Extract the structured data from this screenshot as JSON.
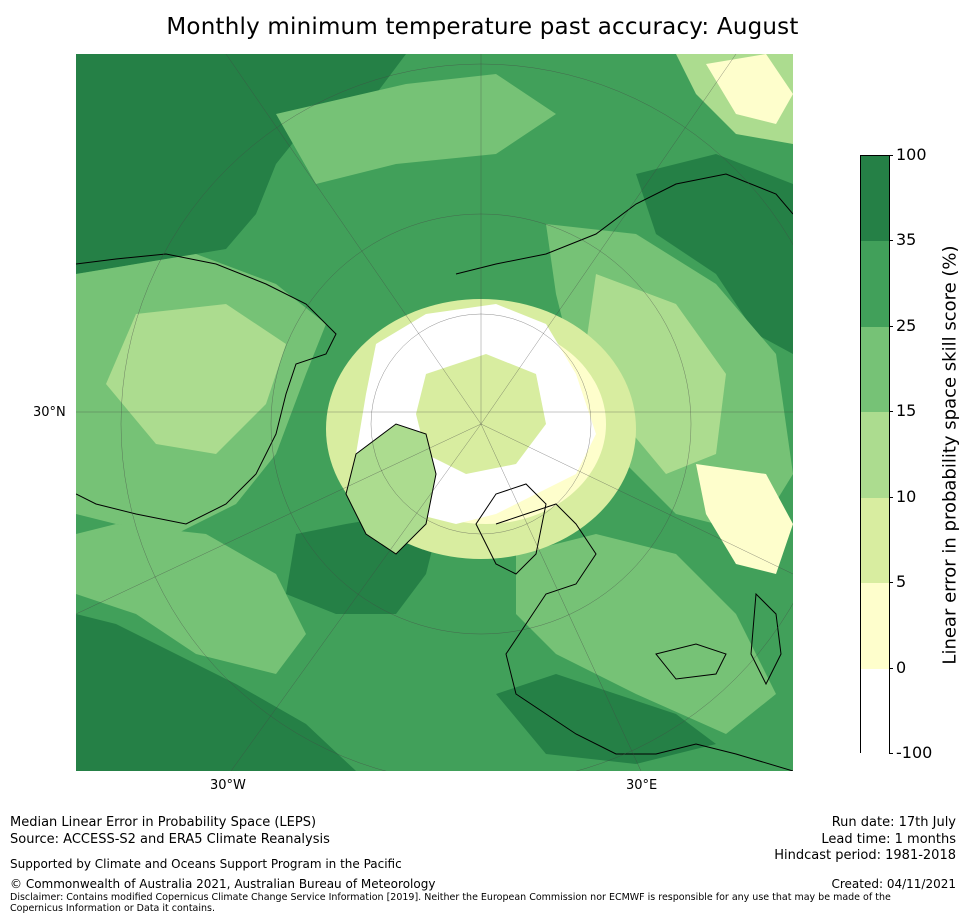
{
  "title": "Monthly minimum temperature past accuracy: August",
  "map": {
    "projection": "north-polar-stereographic",
    "lat_labels": [
      "30°N"
    ],
    "lon_labels": [
      "30°W",
      "30°E"
    ],
    "colors": {
      "very_dark_green": "#258046",
      "dark_green": "#41a05a",
      "mid_green": "#76c276",
      "light_green": "#acdc8f",
      "pale_green": "#d8eda0",
      "cream": "#fefecc",
      "white": "#ffffff",
      "coast": "#000000"
    }
  },
  "colorbar": {
    "label": "Linear error in probability space skill score (%)",
    "ticks": [
      "100",
      "35",
      "25",
      "15",
      "10",
      "5",
      "0",
      "-100"
    ],
    "bins": [
      {
        "from": "35",
        "to": "100",
        "color": "#258046"
      },
      {
        "from": "25",
        "to": "35",
        "color": "#41a05a"
      },
      {
        "from": "15",
        "to": "25",
        "color": "#76c276"
      },
      {
        "from": "10",
        "to": "15",
        "color": "#acdc8f"
      },
      {
        "from": "5",
        "to": "10",
        "color": "#d8eda0"
      },
      {
        "from": "0",
        "to": "5",
        "color": "#fefecc"
      },
      {
        "from": "-100",
        "to": "0",
        "color": "#ffffff"
      }
    ]
  },
  "footer": {
    "method": "Median Linear Error in Probability Space (LEPS)",
    "source": "Source: ACCESS-S2 and ERA5 Climate Reanalysis",
    "support": "Supported by Climate and Oceans Support Program in the Pacific",
    "copyright": "© Commonwealth of Australia 2021, Australian Bureau of Meteorology",
    "disclaimer": "Disclaimer: Contains modified Copernicus Climate Change Service Information [2019]. Neither the European Commission nor ECMWF is responsible for any use that may be made of the Copernicus Information or Data it contains.",
    "run_date": "Run date: 17th July",
    "lead_time": "Lead time: 1 months",
    "hindcast": "Hindcast period: 1981-2018",
    "created": "Created: 04/11/2021"
  }
}
